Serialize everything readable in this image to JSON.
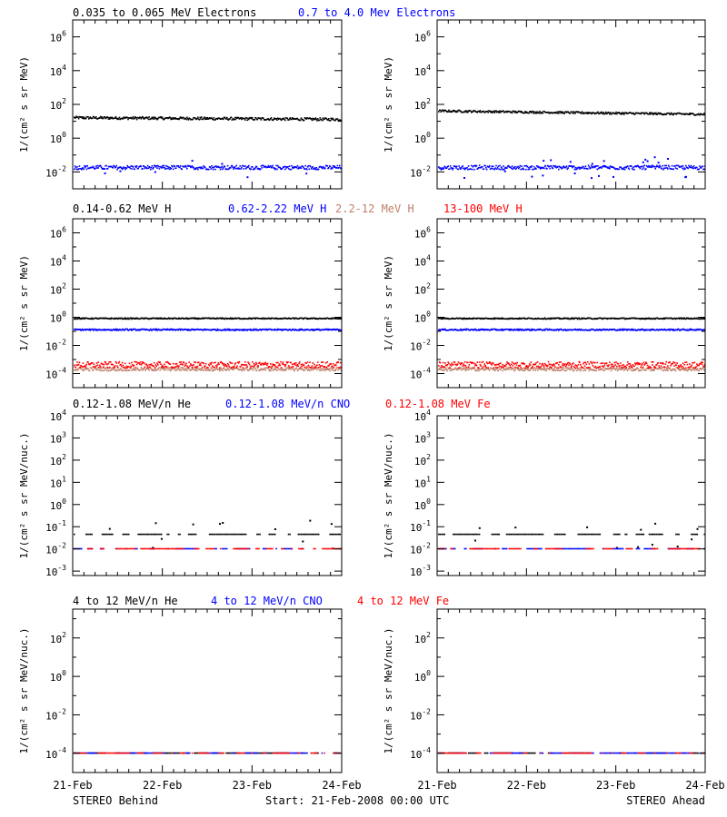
{
  "chart_data": [
    {
      "type": "scatter",
      "row": 0,
      "side": "behind",
      "ylabel": "1/(cm² s sr MeV)",
      "log_y": true,
      "ylim_exp": [
        -3,
        7
      ],
      "ytick_labels": [
        {
          "base": "10",
          "exp": "-2"
        },
        {
          "base": "10",
          "exp": "0"
        },
        {
          "base": "10",
          "exp": "2"
        },
        {
          "base": "10",
          "exp": "4"
        },
        {
          "base": "10",
          "exp": "6"
        }
      ],
      "xlim_days": [
        0,
        3
      ],
      "series": [
        {
          "name": "0.035 to 0.065 MeV Electrons",
          "color": "#000000",
          "level_exp": 1.2,
          "trend": -0.1,
          "scatter": 0.08,
          "outliers": 0.0
        },
        {
          "name": "0.7 to 4.0 Mev Electrons",
          "color": "#0000ff",
          "level_exp": -1.75,
          "trend": 0.0,
          "scatter": 0.12,
          "outliers": 0.02
        }
      ]
    },
    {
      "type": "scatter",
      "row": 0,
      "side": "ahead",
      "ylabel": "1/(cm² s sr MeV)",
      "log_y": true,
      "ylim_exp": [
        -3,
        7
      ],
      "ytick_labels": [
        {
          "base": "10",
          "exp": "-2"
        },
        {
          "base": "10",
          "exp": "0"
        },
        {
          "base": "10",
          "exp": "2"
        },
        {
          "base": "10",
          "exp": "4"
        },
        {
          "base": "10",
          "exp": "6"
        }
      ],
      "xlim_days": [
        0,
        3
      ],
      "series": [
        {
          "name": "0.035 to 0.065 MeV Electrons",
          "color": "#000000",
          "level_exp": 1.6,
          "trend": -0.2,
          "scatter": 0.06,
          "outliers": 0.0
        },
        {
          "name": "0.7 to 4.0 Mev Electrons",
          "color": "#0000ff",
          "level_exp": -1.75,
          "trend": 0.0,
          "scatter": 0.12,
          "outliers": 0.06
        }
      ]
    },
    {
      "type": "scatter",
      "row": 1,
      "side": "behind",
      "ylabel": "1/(cm² s sr MeV)",
      "log_y": true,
      "ylim_exp": [
        -5,
        7
      ],
      "ytick_labels": [
        {
          "base": "10",
          "exp": "-4"
        },
        {
          "base": "10",
          "exp": "-2"
        },
        {
          "base": "10",
          "exp": "0"
        },
        {
          "base": "10",
          "exp": "2"
        },
        {
          "base": "10",
          "exp": "4"
        },
        {
          "base": "10",
          "exp": "6"
        }
      ],
      "xlim_days": [
        0,
        3
      ],
      "series": [
        {
          "name": "0.14-0.62 MeV H",
          "color": "#000000",
          "level_exp": -0.1,
          "trend": 0.0,
          "scatter": 0.04,
          "outliers": 0.0
        },
        {
          "name": "0.62-2.22 MeV H",
          "color": "#0000ff",
          "level_exp": -0.9,
          "trend": 0.0,
          "scatter": 0.05,
          "outliers": 0.0
        },
        {
          "name": "2.2-12 MeV H",
          "color": "#c0806a",
          "level_exp": -3.7,
          "trend": 0.0,
          "scatter": 0.12,
          "outliers": 0.0
        },
        {
          "name": "13-100 MeV H",
          "color": "#ff0000",
          "level_exp": -3.4,
          "trend": 0.0,
          "scatter": 0.22,
          "outliers": 0.0
        }
      ]
    },
    {
      "type": "scatter",
      "row": 1,
      "side": "ahead",
      "ylabel": "1/(cm² s sr MeV)",
      "log_y": true,
      "ylim_exp": [
        -5,
        7
      ],
      "ytick_labels": [
        {
          "base": "10",
          "exp": "-4"
        },
        {
          "base": "10",
          "exp": "-2"
        },
        {
          "base": "10",
          "exp": "0"
        },
        {
          "base": "10",
          "exp": "2"
        },
        {
          "base": "10",
          "exp": "4"
        },
        {
          "base": "10",
          "exp": "6"
        }
      ],
      "xlim_days": [
        0,
        3
      ],
      "series": [
        {
          "name": "0.14-0.62 MeV H",
          "color": "#000000",
          "level_exp": -0.1,
          "trend": 0.0,
          "scatter": 0.04,
          "outliers": 0.0
        },
        {
          "name": "0.62-2.22 MeV H",
          "color": "#0000ff",
          "level_exp": -0.9,
          "trend": 0.0,
          "scatter": 0.05,
          "outliers": 0.0
        },
        {
          "name": "2.2-12 MeV H",
          "color": "#c0806a",
          "level_exp": -3.7,
          "trend": 0.0,
          "scatter": 0.12,
          "outliers": 0.0
        },
        {
          "name": "13-100 MeV H",
          "color": "#ff0000",
          "level_exp": -3.4,
          "trend": 0.0,
          "scatter": 0.22,
          "outliers": 0.0
        }
      ]
    },
    {
      "type": "scatter",
      "row": 2,
      "side": "behind",
      "ylabel": "1/(cm² s sr MeV/nuc.)",
      "log_y": true,
      "ylim_exp": [
        -3.2,
        4
      ],
      "ytick_labels": [
        {
          "base": "10",
          "exp": "-3"
        },
        {
          "base": "10",
          "exp": "-2"
        },
        {
          "base": "10",
          "exp": "-1"
        },
        {
          "base": "10",
          "exp": "0"
        },
        {
          "base": "10",
          "exp": "1"
        },
        {
          "base": "10",
          "exp": "2"
        },
        {
          "base": "10",
          "exp": "3"
        },
        {
          "base": "10",
          "exp": "4"
        }
      ],
      "xlim_days": [
        0,
        3
      ],
      "series": [
        {
          "name": "0.12-1.08 MeV/n He",
          "color": "#000000",
          "level_exp": -1.35,
          "trend": 0.0,
          "scatter": 0.0,
          "outliers": 0.12,
          "sparse": true
        },
        {
          "name": "0.12-1.08 MeV/n CNO",
          "color": "#0000ff",
          "level_exp": -2.0,
          "trend": 0.0,
          "scatter": 0.0,
          "outliers": 0.0,
          "sparse": true
        },
        {
          "name": "0.12-1.08 MeV Fe",
          "color": "#ff0000",
          "level_exp": -2.0,
          "trend": 0.0,
          "scatter": 0.0,
          "outliers": 0.0,
          "sparse": true
        }
      ]
    },
    {
      "type": "scatter",
      "row": 2,
      "side": "ahead",
      "ylabel": "1/(cm² s sr MeV/nuc.)",
      "log_y": true,
      "ylim_exp": [
        -3.2,
        4
      ],
      "ytick_labels": [
        {
          "base": "10",
          "exp": "-3"
        },
        {
          "base": "10",
          "exp": "-2"
        },
        {
          "base": "10",
          "exp": "-1"
        },
        {
          "base": "10",
          "exp": "0"
        },
        {
          "base": "10",
          "exp": "1"
        },
        {
          "base": "10",
          "exp": "2"
        },
        {
          "base": "10",
          "exp": "3"
        },
        {
          "base": "10",
          "exp": "4"
        }
      ],
      "xlim_days": [
        0,
        3
      ],
      "series": [
        {
          "name": "0.12-1.08 MeV/n He",
          "color": "#000000",
          "level_exp": -1.35,
          "trend": 0.0,
          "scatter": 0.0,
          "outliers": 0.12,
          "sparse": true
        },
        {
          "name": "0.12-1.08 MeV/n CNO",
          "color": "#0000ff",
          "level_exp": -2.0,
          "trend": 0.0,
          "scatter": 0.0,
          "outliers": 0.0,
          "sparse": true
        },
        {
          "name": "0.12-1.08 MeV Fe",
          "color": "#ff0000",
          "level_exp": -2.0,
          "trend": 0.0,
          "scatter": 0.0,
          "outliers": 0.0,
          "sparse": true
        }
      ]
    },
    {
      "type": "scatter",
      "row": 3,
      "side": "behind",
      "ylabel": "1/(cm² s sr MeV/nuc.)",
      "log_y": true,
      "ylim_exp": [
        -5,
        3.5
      ],
      "ytick_labels": [
        {
          "base": "10",
          "exp": "-4"
        },
        {
          "base": "10",
          "exp": "-2"
        },
        {
          "base": "10",
          "exp": "0"
        },
        {
          "base": "10",
          "exp": "2"
        }
      ],
      "xlim_days": [
        0,
        3
      ],
      "series": [
        {
          "name": "4 to 12 MeV/n He",
          "color": "#000000",
          "level_exp": -4.0,
          "trend": 0.0,
          "scatter": 0.0,
          "outliers": 0.0,
          "sparse": true
        },
        {
          "name": "4 to 12 MeV/n CNO",
          "color": "#0000ff",
          "level_exp": -4.0,
          "trend": 0.0,
          "scatter": 0.0,
          "outliers": 0.0,
          "sparse": true
        },
        {
          "name": "4 to 12 MeV Fe",
          "color": "#ff0000",
          "level_exp": -4.0,
          "trend": 0.0,
          "scatter": 0.0,
          "outliers": 0.0,
          "sparse": true
        }
      ]
    },
    {
      "type": "scatter",
      "row": 3,
      "side": "ahead",
      "ylabel": "1/(cm² s sr MeV/nuc.)",
      "log_y": true,
      "ylim_exp": [
        -5,
        3.5
      ],
      "ytick_labels": [
        {
          "base": "10",
          "exp": "-4"
        },
        {
          "base": "10",
          "exp": "-2"
        },
        {
          "base": "10",
          "exp": "0"
        },
        {
          "base": "10",
          "exp": "2"
        }
      ],
      "xlim_days": [
        0,
        3
      ],
      "series": [
        {
          "name": "4 to 12 MeV/n He",
          "color": "#000000",
          "level_exp": -4.0,
          "trend": 0.0,
          "scatter": 0.0,
          "outliers": 0.0,
          "sparse": true
        },
        {
          "name": "4 to 12 MeV/n CNO",
          "color": "#0000ff",
          "level_exp": -4.0,
          "trend": 0.0,
          "scatter": 0.0,
          "outliers": 0.0,
          "sparse": true
        },
        {
          "name": "4 to 12 MeV Fe",
          "color": "#ff0000",
          "level_exp": -4.0,
          "trend": 0.0,
          "scatter": 0.0,
          "outliers": 0.0,
          "sparse": true
        }
      ]
    }
  ],
  "row_legends": [
    [
      {
        "text": "0.035 to 0.065 MeV Electrons",
        "color": "#000000"
      },
      {
        "text": "0.7 to 4.0 Mev Electrons",
        "color": "#0000ff"
      }
    ],
    [
      {
        "text": "0.14-0.62 MeV H",
        "color": "#000000"
      },
      {
        "text": "0.62-2.22 MeV H",
        "color": "#0000ff"
      },
      {
        "text": "2.2-12 MeV H",
        "color": "#c0806a"
      },
      {
        "text": "13-100 MeV H",
        "color": "#ff0000"
      }
    ],
    [
      {
        "text": "0.12-1.08 MeV/n He",
        "color": "#000000"
      },
      {
        "text": "0.12-1.08 MeV/n CNO",
        "color": "#0000ff"
      },
      {
        "text": "0.12-1.08 MeV Fe",
        "color": "#ff0000"
      }
    ],
    [
      {
        "text": "4 to 12 MeV/n He",
        "color": "#000000"
      },
      {
        "text": "4 to 12 MeV/n CNO",
        "color": "#0000ff"
      },
      {
        "text": "4 to 12 MeV Fe",
        "color": "#ff0000"
      }
    ]
  ],
  "xtick_labels": [
    "21-Feb",
    "22-Feb",
    "23-Feb",
    "24-Feb"
  ],
  "footer": {
    "left": "STEREO Behind",
    "center": "Start: 21-Feb-2008 00:00 UTC",
    "right": "STEREO Ahead"
  }
}
